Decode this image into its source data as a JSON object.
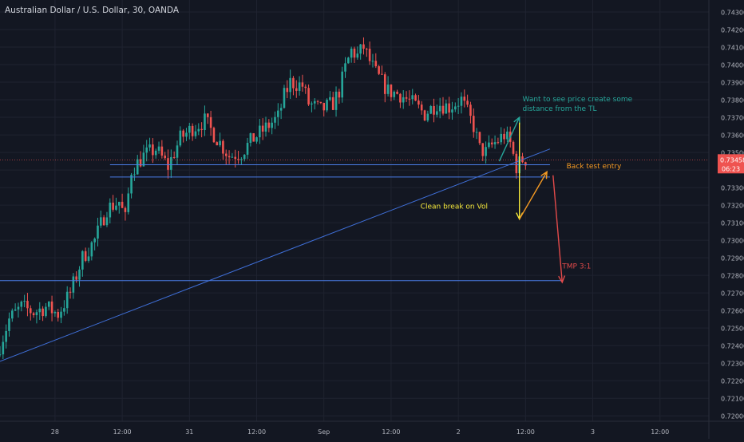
{
  "header": {
    "symbol_title": "Australian Dollar / U.S. Dollar, 30, OANDA"
  },
  "colors": {
    "background": "#131722",
    "grid": "#1f2330",
    "up_candle": "#26a69a",
    "down_candle": "#ef5350",
    "trend_line": "#3f6fd8",
    "level_line": "#4a7de8",
    "arrow_green": "#26a69a",
    "arrow_yellow": "#f5e83a",
    "arrow_orange": "#f59a23",
    "arrow_red": "#e24a4a",
    "price_badge": "#ef5350",
    "axis_text": "#b2b5be"
  },
  "chart_data": {
    "type": "candlestick",
    "title": "Australian Dollar / U.S. Dollar, 30, OANDA",
    "xlabel": "",
    "ylabel": "",
    "ylim": [
      0.72,
      0.743
    ],
    "grid": true,
    "x_ticks": [
      "28",
      "12:00",
      "31",
      "12:00",
      "Sep",
      "12:00",
      "2",
      "12:00",
      "3",
      "12:00"
    ],
    "y_ticks": [
      "0.74300",
      "0.74200",
      "0.74100",
      "0.74000",
      "0.73900",
      "0.73800",
      "0.73700",
      "0.73600",
      "0.73500",
      "0.73400",
      "0.73300",
      "0.73200",
      "0.73100",
      "0.73000",
      "0.72900",
      "0.72800",
      "0.72700",
      "0.72600",
      "0.72500",
      "0.72400",
      "0.72300",
      "0.72200",
      "0.72100",
      "0.72000"
    ],
    "y_tick_values": [
      0.743,
      0.742,
      0.741,
      0.74,
      0.739,
      0.738,
      0.737,
      0.736,
      0.735,
      0.734,
      0.733,
      0.732,
      0.731,
      0.73,
      0.729,
      0.728,
      0.727,
      0.726,
      0.725,
      0.724,
      0.723,
      0.722,
      0.721,
      0.72
    ],
    "last_price": "0.73458",
    "last_price_value": 0.73458,
    "countdown": "06:23",
    "close_path": [
      [
        0,
        0.7235
      ],
      [
        2,
        0.7255
      ],
      [
        4,
        0.7262
      ],
      [
        6,
        0.7259
      ],
      [
        8,
        0.7262
      ],
      [
        10,
        0.7258
      ],
      [
        12,
        0.727
      ],
      [
        14,
        0.729
      ],
      [
        16,
        0.73
      ],
      [
        18,
        0.7318
      ],
      [
        20,
        0.7322
      ],
      [
        21,
        0.7312
      ],
      [
        22,
        0.734
      ],
      [
        24,
        0.7348
      ],
      [
        26,
        0.7352
      ],
      [
        28,
        0.7342
      ],
      [
        30,
        0.7358
      ],
      [
        32,
        0.7364
      ],
      [
        34,
        0.7368
      ],
      [
        36,
        0.7358
      ],
      [
        38,
        0.7348
      ],
      [
        40,
        0.735
      ],
      [
        42,
        0.7358
      ],
      [
        44,
        0.7364
      ],
      [
        46,
        0.737
      ],
      [
        47,
        0.7382
      ],
      [
        48,
        0.739
      ],
      [
        50,
        0.7388
      ],
      [
        51,
        0.7378
      ],
      [
        53,
        0.7374
      ],
      [
        55,
        0.7378
      ],
      [
        56,
        0.7385
      ],
      [
        57,
        0.7398
      ],
      [
        58,
        0.7408
      ],
      [
        59,
        0.7405
      ],
      [
        60,
        0.741
      ],
      [
        61,
        0.7402
      ],
      [
        62,
        0.7395
      ],
      [
        64,
        0.7385
      ],
      [
        66,
        0.7383
      ],
      [
        68,
        0.7378
      ],
      [
        70,
        0.7372
      ],
      [
        72,
        0.7378
      ],
      [
        74,
        0.7376
      ],
      [
        76,
        0.738
      ],
      [
        78,
        0.7365
      ],
      [
        79,
        0.7352
      ],
      [
        80,
        0.735
      ],
      [
        81,
        0.7354
      ],
      [
        83,
        0.736
      ],
      [
        84,
        0.7355
      ],
      [
        85,
        0.7342
      ],
      [
        86,
        0.7346
      ]
    ],
    "x_max": 116,
    "tick_positions": [
      9,
      20,
      31,
      42,
      53,
      64,
      75,
      86,
      97,
      108
    ],
    "levels": [
      {
        "name": "resistance-upper",
        "y": 0.7343,
        "x1": 18,
        "x2": 90
      },
      {
        "name": "resistance-lower",
        "y": 0.7336,
        "x1": 18,
        "x2": 90
      },
      {
        "name": "target-level",
        "y": 0.7277,
        "x1": 0,
        "x2": 92
      }
    ],
    "trend_line": {
      "x1": 0,
      "y1": 0.7231,
      "x2": 90,
      "y2": 0.7352
    },
    "annotations": [
      {
        "name": "distance-note",
        "text": "Want to see price create some distance from the TL",
        "lines": [
          "Want to see price create some",
          "distance from the TL"
        ],
        "x": 85.5,
        "y": 0.7379,
        "color": "#26a69a"
      },
      {
        "name": "backtest-note",
        "text": "Back test entry",
        "x": 92.7,
        "y": 0.7341,
        "color": "#f59a23"
      },
      {
        "name": "clean-break-note",
        "text": "Clean break on Vol",
        "x": 68.8,
        "y": 0.7318,
        "color": "#f5e83a"
      },
      {
        "name": "tmp-note",
        "text": "TMP 3:1",
        "x": 92,
        "y": 0.7284,
        "color": "#e24a4a"
      }
    ],
    "arrows": [
      {
        "name": "green-arrow",
        "x1": 81.7,
        "y1": 0.7345,
        "x2": 85,
        "y2": 0.737,
        "color": "#26a69a"
      },
      {
        "name": "yellow-arrow",
        "x1": 85,
        "y1": 0.7367,
        "x2": 85,
        "y2": 0.7312,
        "color": "#f5e83a"
      },
      {
        "name": "orange-arrow",
        "x1": 85,
        "y1": 0.7312,
        "x2": 89.5,
        "y2": 0.7339,
        "color": "#f59a23"
      },
      {
        "name": "red-arrow",
        "x1": 90.5,
        "y1": 0.7337,
        "x2": 92,
        "y2": 0.7276,
        "color": "#e24a4a"
      }
    ]
  }
}
